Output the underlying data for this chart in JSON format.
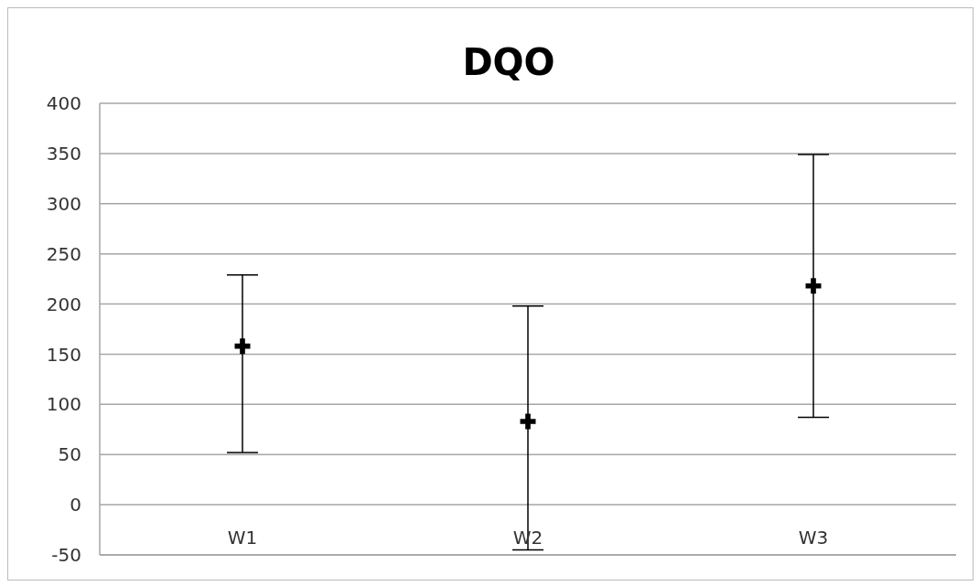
{
  "chart_data": {
    "type": "scatter",
    "title": "DQO",
    "categories": [
      "W1",
      "W2",
      "W3"
    ],
    "series": [
      {
        "color": "#000000",
        "values": [
          158,
          83,
          218
        ],
        "errors": [
          [
            52,
            229
          ],
          [
            -45,
            198
          ],
          [
            87,
            349
          ]
        ]
      }
    ],
    "marker": "cross",
    "ylim": [
      -50,
      400
    ],
    "yticks": [
      -50,
      0,
      50,
      100,
      150,
      200,
      250,
      300,
      350,
      400
    ],
    "grid": "y"
  }
}
